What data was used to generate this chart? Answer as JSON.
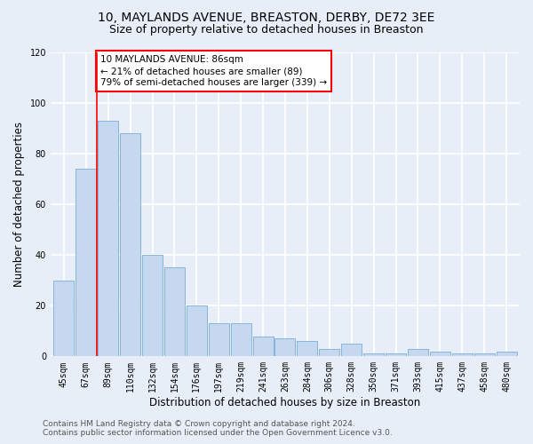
{
  "title": "10, MAYLANDS AVENUE, BREASTON, DERBY, DE72 3EE",
  "subtitle": "Size of property relative to detached houses in Breaston",
  "xlabel": "Distribution of detached houses by size in Breaston",
  "ylabel": "Number of detached properties",
  "categories": [
    "45sqm",
    "67sqm",
    "89sqm",
    "110sqm",
    "132sqm",
    "154sqm",
    "176sqm",
    "197sqm",
    "219sqm",
    "241sqm",
    "263sqm",
    "284sqm",
    "306sqm",
    "328sqm",
    "350sqm",
    "371sqm",
    "393sqm",
    "415sqm",
    "437sqm",
    "458sqm",
    "480sqm"
  ],
  "values": [
    30,
    74,
    93,
    88,
    40,
    35,
    20,
    13,
    13,
    8,
    7,
    6,
    3,
    5,
    1,
    1,
    3,
    2,
    1,
    1,
    2
  ],
  "bar_color": "#c5d8f0",
  "bar_edge_color": "#7aadd4",
  "annotation_title": "10 MAYLANDS AVENUE: 86sqm",
  "annotation_line1": "← 21% of detached houses are smaller (89)",
  "annotation_line2": "79% of semi-detached houses are larger (339) →",
  "vline_index": 1.5,
  "ylim": [
    0,
    120
  ],
  "yticks": [
    0,
    20,
    40,
    60,
    80,
    100,
    120
  ],
  "footer_line1": "Contains HM Land Registry data © Crown copyright and database right 2024.",
  "footer_line2": "Contains public sector information licensed under the Open Government Licence v3.0.",
  "bg_color": "#e8eef8",
  "plot_bg_color": "#e8eef8",
  "grid_color": "#ffffff",
  "title_fontsize": 10,
  "subtitle_fontsize": 9,
  "label_fontsize": 8.5,
  "tick_fontsize": 7,
  "footer_fontsize": 6.5,
  "annotation_fontsize": 7.5
}
